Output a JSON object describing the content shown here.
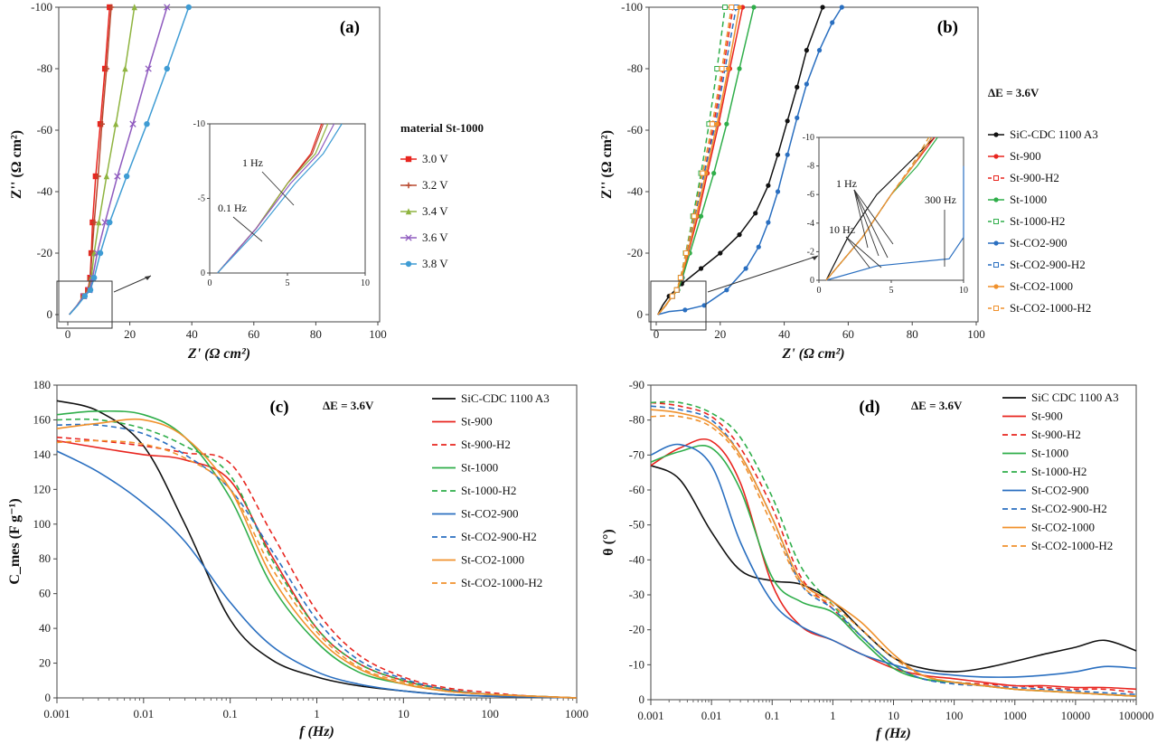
{
  "chart_data": [
    {
      "panel": "(a)",
      "type": "line",
      "xlabel": "Z' (Ω cm²)",
      "ylabel": "Z'' (Ω cm²)",
      "xlim": [
        0,
        100
      ],
      "ylim": [
        0,
        -100
      ],
      "xticks": [
        "0",
        "20",
        "40",
        "60",
        "80",
        "100"
      ],
      "yticks": [
        "0",
        "-20",
        "-40",
        "-60",
        "-80",
        "-100"
      ],
      "legend_title": "material St-1000",
      "series": [
        {
          "name": "3.0 V",
          "color": "#e8251f",
          "marker": "square",
          "x": [
            0.5,
            3,
            5,
            6.5,
            7.2,
            7.6,
            8,
            9,
            10.5,
            12,
            13.5
          ],
          "y": [
            0,
            -3,
            -6,
            -8,
            -12,
            -20,
            -30,
            -45,
            -62,
            -80,
            -100
          ]
        },
        {
          "name": "3.2 V",
          "color": "#b8492f",
          "marker": "plus",
          "x": [
            0.5,
            3,
            5,
            6.6,
            7.3,
            7.8,
            8.5,
            9.8,
            11,
            12.5,
            14
          ],
          "y": [
            0,
            -3,
            -6,
            -8,
            -12,
            -20,
            -30,
            -45,
            -62,
            -80,
            -100
          ]
        },
        {
          "name": "3.4 V",
          "color": "#8fb440",
          "marker": "triangle",
          "x": [
            0.5,
            3,
            5,
            6.8,
            7.6,
            8.5,
            10,
            12.5,
            15.5,
            18.5,
            21.5
          ],
          "y": [
            0,
            -3,
            -6,
            -8,
            -12,
            -20,
            -30,
            -45,
            -62,
            -80,
            -100
          ]
        },
        {
          "name": "3.6 V",
          "color": "#8f5bbf",
          "marker": "x",
          "x": [
            0.5,
            3,
            5.2,
            7,
            8,
            9.5,
            12,
            16,
            21,
            26,
            32
          ],
          "y": [
            0,
            -3,
            -6,
            -8,
            -12,
            -20,
            -30,
            -45,
            -62,
            -80,
            -100
          ]
        },
        {
          "name": "3.8 V",
          "color": "#3f9cd4",
          "marker": "dot",
          "x": [
            0.5,
            3.2,
            5.5,
            7.3,
            8.5,
            10.5,
            13.5,
            19,
            25.5,
            32,
            39
          ],
          "y": [
            0,
            -3,
            -6,
            -8,
            -12,
            -20,
            -30,
            -45,
            -62,
            -80,
            -100
          ]
        }
      ],
      "inset": {
        "xlim": [
          0,
          10
        ],
        "ylim": [
          0,
          -10
        ],
        "xticks": [
          "0",
          "5",
          "10"
        ],
        "yticks": [
          "0",
          "-5",
          "-10"
        ],
        "annotations": [
          "1 Hz",
          "0.1 Hz"
        ]
      }
    },
    {
      "panel": "(b)",
      "type": "line",
      "xlabel": "Z' (Ω cm²)",
      "ylabel": "Z'' (Ω cm²)",
      "xlim": [
        0,
        100
      ],
      "ylim": [
        0,
        -100
      ],
      "xticks": [
        "0",
        "20",
        "40",
        "60",
        "80",
        "100"
      ],
      "yticks": [
        "0",
        "-20",
        "-40",
        "-60",
        "-80",
        "-100"
      ],
      "legend_title": "ΔE = 3.6V",
      "series": [
        {
          "name": "SiC-CDC 1100 A3",
          "color": "#111111",
          "dash": false,
          "x": [
            0.5,
            2,
            4,
            8,
            14,
            20,
            26,
            31,
            35,
            38,
            41,
            44,
            47,
            52
          ],
          "y": [
            0,
            -3,
            -6,
            -10,
            -15,
            -20,
            -26,
            -33,
            -42,
            -52,
            -63,
            -74,
            -86,
            -100
          ]
        },
        {
          "name": "St-900",
          "color": "#e8251f",
          "dash": false,
          "x": [
            0.5,
            3,
            5,
            6.5,
            8,
            10,
            13,
            16,
            19.5,
            23,
            27
          ],
          "y": [
            0,
            -3,
            -6,
            -8,
            -12,
            -20,
            -32,
            -46,
            -62,
            -80,
            -100
          ]
        },
        {
          "name": "St-900-H2",
          "color": "#e8251f",
          "dash": true,
          "x": [
            0.5,
            3,
            5,
            6.5,
            7.8,
            9.5,
            12,
            15,
            18,
            21,
            24
          ],
          "y": [
            0,
            -3,
            -6,
            -8,
            -12,
            -20,
            -32,
            -46,
            -62,
            -80,
            -100
          ]
        },
        {
          "name": "St-1000",
          "color": "#2fae4a",
          "dash": false,
          "x": [
            0.5,
            3,
            5,
            6.8,
            8.2,
            10.5,
            14,
            18,
            22,
            26,
            30.5
          ],
          "y": [
            0,
            -3,
            -6,
            -8,
            -12,
            -20,
            -32,
            -46,
            -62,
            -80,
            -100
          ]
        },
        {
          "name": "St-1000-H2",
          "color": "#2fae4a",
          "dash": true,
          "x": [
            0.5,
            3,
            5,
            6.4,
            7.6,
            9.2,
            11.5,
            14,
            16.5,
            19,
            21.5
          ],
          "y": [
            0,
            -3,
            -6,
            -8,
            -12,
            -20,
            -32,
            -46,
            -62,
            -80,
            -100
          ]
        },
        {
          "name": "St-CO2-900",
          "color": "#2a6fc0",
          "dash": false,
          "x": [
            0.5,
            4,
            9,
            15,
            22,
            28,
            32,
            35,
            38,
            41,
            44,
            47,
            51,
            55,
            58
          ],
          "y": [
            0,
            -1,
            -1.5,
            -3,
            -8,
            -15,
            -22,
            -30,
            -40,
            -52,
            -64,
            -75,
            -86,
            -95,
            -100
          ]
        },
        {
          "name": "St-CO2-900-H2",
          "color": "#2a6fc0",
          "dash": true,
          "x": [
            0.5,
            3,
            5,
            6.5,
            7.8,
            9.5,
            12,
            15,
            18.5,
            21.5,
            25
          ],
          "y": [
            0,
            -3,
            -6,
            -8,
            -12,
            -20,
            -32,
            -46,
            -62,
            -80,
            -100
          ]
        },
        {
          "name": "St-CO2-1000",
          "color": "#f0912c",
          "dash": false,
          "x": [
            0.5,
            3,
            5,
            6.5,
            7.8,
            9.8,
            12.5,
            15.5,
            19,
            22.5,
            26
          ],
          "y": [
            0,
            -3,
            -6,
            -8,
            -12,
            -20,
            -32,
            -46,
            -62,
            -80,
            -100
          ]
        },
        {
          "name": "St-CO2-1000-H2",
          "color": "#f0912c",
          "dash": true,
          "x": [
            0.5,
            3,
            5,
            6.4,
            7.6,
            9.3,
            11.8,
            14.5,
            17.5,
            20.5,
            23.5
          ],
          "y": [
            0,
            -3,
            -6,
            -8,
            -12,
            -20,
            -32,
            -46,
            -62,
            -80,
            -100
          ]
        }
      ],
      "inset": {
        "xlim": [
          0,
          10
        ],
        "ylim": [
          0,
          -10
        ],
        "xticks": [
          "0",
          "5",
          "10"
        ],
        "yticks": [
          "0",
          "-2",
          "-4",
          "-6",
          "-8",
          "-10"
        ],
        "annotations": [
          "1 Hz",
          "10 Hz",
          "300 Hz"
        ]
      }
    },
    {
      "panel": "(c)",
      "type": "line",
      "xscale": "log",
      "xlabel": "f (Hz)",
      "ylabel": "C_mes (F g⁻¹)",
      "xlim": [
        0.001,
        1000
      ],
      "ylim": [
        0,
        180
      ],
      "xticks": [
        "0.001",
        "0.01",
        "0.1",
        "1",
        "10",
        "100",
        "1000"
      ],
      "yticks": [
        "0",
        "20",
        "40",
        "60",
        "80",
        "100",
        "120",
        "140",
        "160",
        "180"
      ],
      "annotation": "ΔE = 3.6V",
      "x": [
        0.001,
        0.003,
        0.01,
        0.03,
        0.1,
        0.3,
        1,
        3,
        10,
        30,
        100,
        300,
        1000
      ],
      "series": [
        {
          "name": "SiC-CDC 1100 A3",
          "color": "#111111",
          "dash": false,
          "values": [
            171,
            165,
            145,
            100,
            45,
            22,
            12,
            7,
            4,
            2,
            1,
            0.5,
            0
          ]
        },
        {
          "name": "St-900",
          "color": "#e8251f",
          "dash": false,
          "values": [
            148,
            144,
            140,
            137,
            125,
            82,
            40,
            20,
            10,
            5,
            2,
            1,
            0
          ]
        },
        {
          "name": "St-900-H2",
          "color": "#e8251f",
          "dash": true,
          "values": [
            150,
            148,
            145,
            141,
            135,
            95,
            50,
            25,
            12,
            6,
            3,
            1,
            0
          ]
        },
        {
          "name": "St-1000",
          "color": "#2fae4a",
          "dash": false,
          "values": [
            163,
            165,
            163,
            150,
            115,
            65,
            32,
            15,
            8,
            4,
            2,
            1,
            0
          ]
        },
        {
          "name": "St-1000-H2",
          "color": "#2fae4a",
          "dash": true,
          "values": [
            160,
            160,
            155,
            145,
            128,
            80,
            40,
            20,
            10,
            5,
            2,
            1,
            0
          ]
        },
        {
          "name": "St-CO2-900",
          "color": "#2a6fc0",
          "dash": false,
          "values": [
            142,
            130,
            112,
            90,
            55,
            30,
            15,
            8,
            4,
            2,
            1,
            0.5,
            0
          ]
        },
        {
          "name": "St-CO2-900-H2",
          "color": "#2a6fc0",
          "dash": true,
          "values": [
            157,
            157,
            152,
            140,
            120,
            85,
            45,
            22,
            11,
            5,
            2,
            1,
            0
          ]
        },
        {
          "name": "St-CO2-1000",
          "color": "#f0912c",
          "dash": false,
          "values": [
            155,
            158,
            160,
            150,
            120,
            70,
            35,
            17,
            8,
            4,
            2,
            1,
            0
          ]
        },
        {
          "name": "St-CO2-1000-H2",
          "color": "#f0912c",
          "dash": true,
          "values": [
            147,
            148,
            146,
            138,
            120,
            75,
            38,
            18,
            9,
            4,
            2,
            1,
            0
          ]
        }
      ]
    },
    {
      "panel": "(d)",
      "type": "line",
      "xscale": "log",
      "xlabel": "f (Hz)",
      "ylabel": "θ (°)",
      "xlim": [
        0.001,
        100000
      ],
      "ylim": [
        0,
        -90
      ],
      "xticks": [
        "0.001",
        "0.01",
        "0.1",
        "1",
        "10",
        "100",
        "1000",
        "10000",
        "100000"
      ],
      "yticks": [
        "0",
        "-10",
        "-20",
        "-30",
        "-40",
        "-50",
        "-60",
        "-70",
        "-80",
        "-90"
      ],
      "annotation": "ΔE = 3.6V",
      "x": [
        0.001,
        0.003,
        0.01,
        0.03,
        0.1,
        0.3,
        1,
        3,
        10,
        30,
        100,
        300,
        1000,
        3000,
        10000,
        30000,
        100000
      ],
      "series": [
        {
          "name": "SiC CDC 1100 A3",
          "color": "#111111",
          "dash": false,
          "values": [
            -67,
            -63,
            -48,
            -37,
            -34,
            -33,
            -28,
            -20,
            -12,
            -9,
            -8,
            -9,
            -11,
            -13,
            -15,
            -17,
            -14
          ]
        },
        {
          "name": "St-900",
          "color": "#e8251f",
          "dash": false,
          "values": [
            -67,
            -72,
            -74,
            -62,
            -33,
            -21,
            -17,
            -13,
            -9,
            -7,
            -6,
            -5,
            -4,
            -4,
            -3.5,
            -3.5,
            -3
          ]
        },
        {
          "name": "St-900-H2",
          "color": "#e8251f",
          "dash": true,
          "values": [
            -85,
            -84,
            -81,
            -72,
            -55,
            -35,
            -26,
            -18,
            -10,
            -6,
            -5,
            -4.5,
            -4,
            -3.5,
            -3,
            -3,
            -2
          ]
        },
        {
          "name": "St-1000",
          "color": "#2fae4a",
          "dash": false,
          "values": [
            -68,
            -71,
            -72,
            -60,
            -35,
            -28,
            -25,
            -17,
            -9,
            -6,
            -5,
            -4,
            -3,
            -2.5,
            -2,
            -1.5,
            -1
          ]
        },
        {
          "name": "St-1000-H2",
          "color": "#2fae4a",
          "dash": true,
          "values": [
            -85,
            -85,
            -82,
            -75,
            -58,
            -38,
            -27,
            -18,
            -10,
            -6,
            -5,
            -4,
            -3,
            -2.5,
            -2,
            -1.5,
            -1
          ]
        },
        {
          "name": "St-CO2-900",
          "color": "#2a6fc0",
          "dash": false,
          "values": [
            -70,
            -73,
            -67,
            -45,
            -28,
            -21,
            -17,
            -13,
            -10,
            -8,
            -7,
            -6.5,
            -6.5,
            -7,
            -8,
            -9.5,
            -9
          ]
        },
        {
          "name": "St-CO2-900-H2",
          "color": "#2a6fc0",
          "dash": true,
          "values": [
            -84,
            -83,
            -80,
            -70,
            -52,
            -33,
            -26,
            -18,
            -10,
            -6,
            -4.5,
            -4,
            -3.5,
            -3,
            -2.5,
            -2,
            -1.5
          ]
        },
        {
          "name": "St-CO2-1000",
          "color": "#f0912c",
          "dash": false,
          "values": [
            -83,
            -82,
            -79,
            -70,
            -52,
            -34,
            -28,
            -22,
            -13,
            -7,
            -5,
            -4,
            -3,
            -2.5,
            -2,
            -1.5,
            -1
          ]
        },
        {
          "name": "St-CO2-1000-H2",
          "color": "#f0912c",
          "dash": true,
          "values": [
            -81,
            -81,
            -78,
            -69,
            -50,
            -33,
            -27,
            -20,
            -12,
            -7,
            -5,
            -4,
            -3,
            -2.5,
            -2,
            -1.5,
            -1
          ]
        }
      ]
    }
  ]
}
